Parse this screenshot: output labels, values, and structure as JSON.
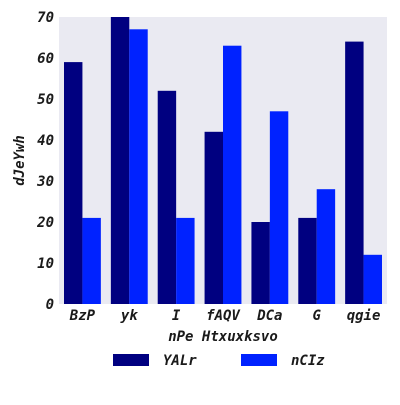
{
  "chart_data": {
    "type": "bar",
    "title": "",
    "xlabel": "nPe Htxuxksvo",
    "ylabel": "dJeYwh",
    "categories": [
      "BzP",
      "yk",
      "I",
      "fAQV",
      "DCa",
      "G",
      "qgie"
    ],
    "series": [
      {
        "name": "YALr",
        "color": "#000080",
        "values": [
          59,
          70,
          52,
          42,
          20,
          21,
          64
        ]
      },
      {
        "name": "nCIz",
        "color": "#0022ff",
        "values": [
          21,
          67,
          21,
          63,
          47,
          28,
          12
        ]
      }
    ],
    "ylim": [
      0,
      70
    ],
    "yticks": [
      0,
      10,
      20,
      30,
      40,
      50,
      60,
      70
    ],
    "grid": false,
    "legend_position": "bottom-center",
    "background_color": "#eaeaf2"
  }
}
